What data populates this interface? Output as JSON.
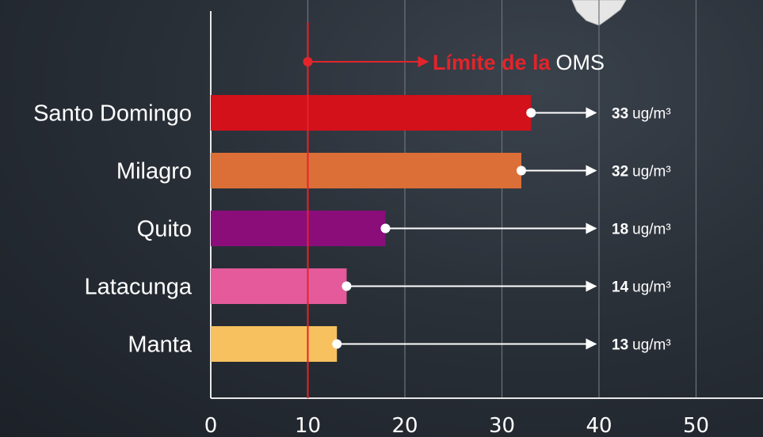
{
  "chart_data": {
    "type": "bar",
    "orientation": "horizontal",
    "categories": [
      "Santo Domingo",
      "Milagro",
      "Quito",
      "Latacunga",
      "Manta"
    ],
    "values": [
      33,
      32,
      18,
      14,
      13
    ],
    "unit": "ug/m³",
    "value_labels": [
      {
        "number": "33",
        "unit": "ug/m³"
      },
      {
        "number": "32",
        "unit": "ug/m³"
      },
      {
        "number": "18",
        "unit": "ug/m³"
      },
      {
        "number": "14",
        "unit": "ug/m³"
      },
      {
        "number": "13",
        "unit": "ug/m³"
      }
    ],
    "colors": [
      "#d2111b",
      "#dc6e37",
      "#8a0d7a",
      "#e45a9b",
      "#f7c160"
    ],
    "xlim": [
      0,
      50
    ],
    "xticks": [
      0,
      10,
      20,
      30,
      40,
      50
    ],
    "grid": true,
    "reference_line": {
      "value": 10,
      "label_part1": "Límite de la",
      "label_part2": "OMS",
      "color": "#e3242b"
    },
    "title": "",
    "xlabel": "",
    "ylabel": ""
  }
}
